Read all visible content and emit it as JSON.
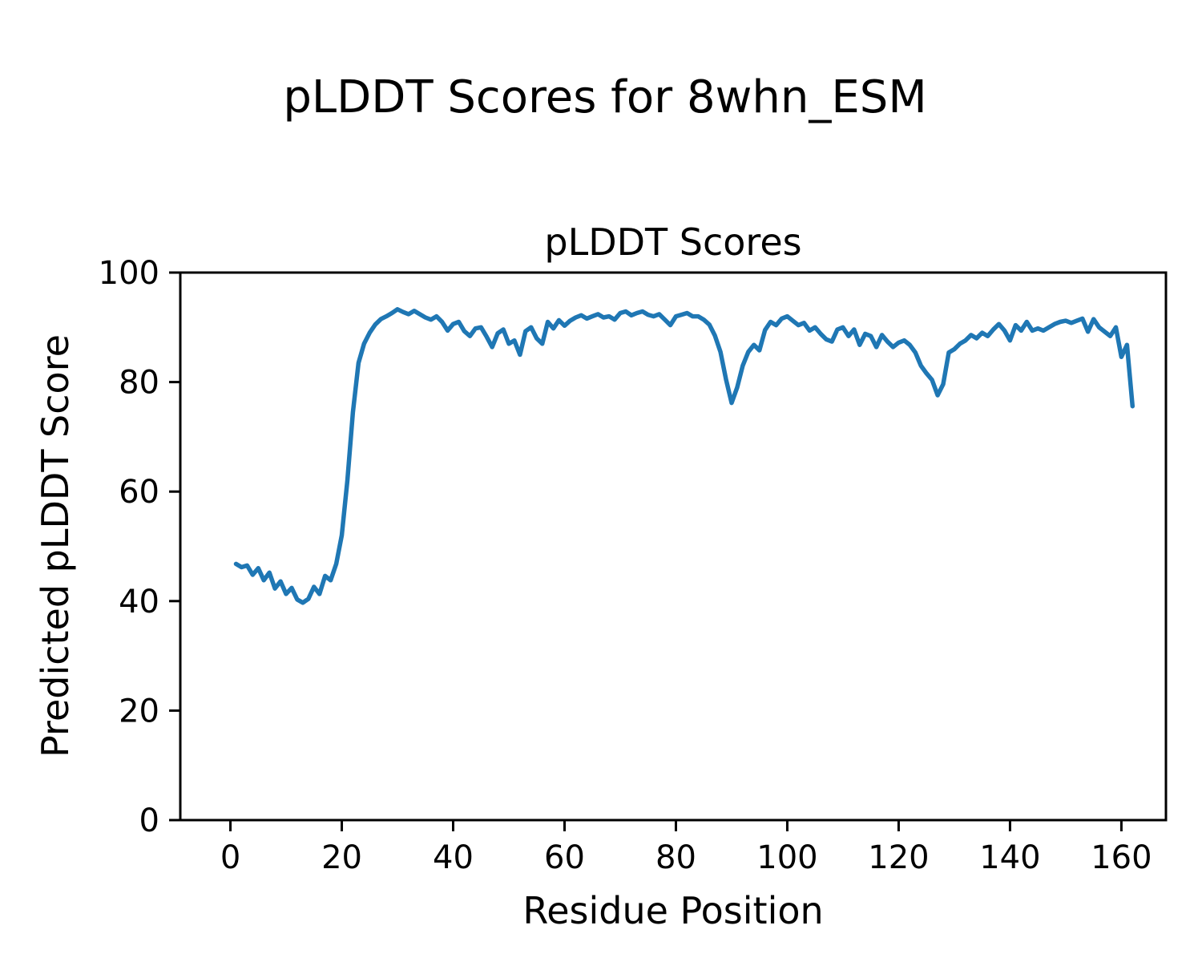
{
  "figure": {
    "title": "pLDDT Scores for 8whn_ESM",
    "background": "#ffffff"
  },
  "chart_data": {
    "type": "line",
    "title": "pLDDT Scores",
    "xlabel": "Residue Position",
    "ylabel": "Predicted pLDDT Score",
    "line_color": "#1f77b4",
    "grid": false,
    "legend": "none",
    "xlim": [
      -9,
      168
    ],
    "ylim": [
      0,
      100
    ],
    "x_ticks": [
      0,
      20,
      40,
      60,
      80,
      100,
      120,
      140,
      160
    ],
    "y_ticks": [
      0,
      20,
      40,
      60,
      80,
      100
    ],
    "x_start": 1,
    "x_step": 1,
    "series": [
      {
        "name": "pLDDT",
        "values": [
          46.8,
          46.2,
          46.5,
          44.8,
          46.0,
          43.8,
          45.2,
          42.3,
          43.6,
          41.3,
          42.4,
          40.3,
          39.7,
          40.4,
          42.6,
          41.3,
          44.6,
          43.8,
          46.8,
          52.0,
          62.0,
          74.5,
          83.5,
          87.0,
          89.0,
          90.5,
          91.5,
          92.0,
          92.6,
          93.3,
          92.8,
          92.4,
          93.0,
          92.4,
          91.8,
          91.4,
          92.0,
          91.0,
          89.4,
          90.6,
          91.0,
          89.3,
          88.4,
          89.8,
          90.0,
          88.3,
          86.4,
          88.9,
          89.6,
          87.0,
          87.6,
          85.0,
          89.3,
          90.0,
          88.0,
          87.0,
          91.0,
          89.8,
          91.3,
          90.3,
          91.2,
          91.8,
          92.2,
          91.6,
          92.0,
          92.4,
          91.8,
          92.0,
          91.4,
          92.6,
          92.9,
          92.2,
          92.6,
          92.9,
          92.3,
          92.0,
          92.4,
          91.4,
          90.4,
          92.0,
          92.3,
          92.6,
          92.0,
          92.0,
          91.4,
          90.5,
          88.5,
          85.5,
          80.5,
          76.2,
          79.0,
          83.0,
          85.5,
          86.8,
          85.8,
          89.5,
          91.0,
          90.4,
          91.6,
          92.0,
          91.2,
          90.4,
          90.8,
          89.4,
          90.0,
          88.8,
          87.8,
          87.4,
          89.6,
          90.0,
          88.4,
          89.6,
          86.8,
          88.8,
          88.4,
          86.4,
          88.6,
          87.4,
          86.4,
          87.2,
          87.6,
          86.8,
          85.4,
          83.0,
          81.6,
          80.4,
          77.6,
          79.6,
          85.4,
          86.0,
          87.0,
          87.6,
          88.6,
          88.0,
          89.0,
          88.4,
          89.6,
          90.6,
          89.4,
          87.6,
          90.4,
          89.4,
          91.0,
          89.4,
          89.8,
          89.4,
          90.0,
          90.6,
          91.0,
          91.2,
          90.8,
          91.2,
          91.6,
          89.2,
          91.5,
          90.0,
          89.2,
          88.4,
          90.0,
          84.6,
          86.8,
          75.6
        ]
      }
    ]
  }
}
